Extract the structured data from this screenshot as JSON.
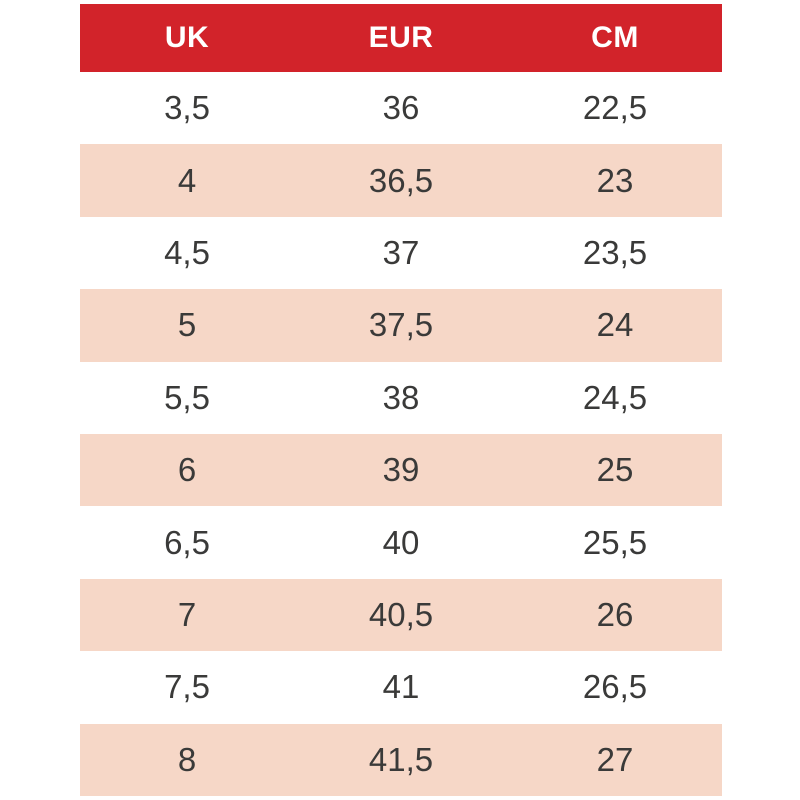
{
  "table": {
    "columns": [
      "UK",
      "EUR",
      "CM"
    ],
    "rows": [
      {
        "uk": "3,5",
        "eur": "36",
        "cm": "22,5"
      },
      {
        "uk": "4",
        "eur": "36,5",
        "cm": "23"
      },
      {
        "uk": "4,5",
        "eur": "37",
        "cm": "23,5"
      },
      {
        "uk": "5",
        "eur": "37,5",
        "cm": "24"
      },
      {
        "uk": "5,5",
        "eur": "38",
        "cm": "24,5"
      },
      {
        "uk": "6",
        "eur": "39",
        "cm": "25"
      },
      {
        "uk": "6,5",
        "eur": "40",
        "cm": "25,5"
      },
      {
        "uk": "7",
        "eur": "40,5",
        "cm": "26"
      },
      {
        "uk": "7,5",
        "eur": "41",
        "cm": "26,5"
      },
      {
        "uk": "8",
        "eur": "41,5",
        "cm": "27"
      }
    ]
  },
  "colors": {
    "header_bg": "#d2232a",
    "header_text": "#ffffff",
    "row_bg": "#ffffff",
    "row_alt_bg": "#f6d7c7",
    "cell_text": "#3a3a39"
  }
}
